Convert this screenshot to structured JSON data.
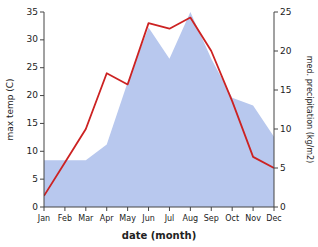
{
  "chart_data": {
    "type": "line",
    "xlabel": "date (month)",
    "ylabel": "max temp (C)",
    "y2label": "med. precipitation (kg/m2)",
    "categories": [
      "Jan",
      "Feb",
      "Mar",
      "Apr",
      "May",
      "Jun",
      "Jul",
      "Aug",
      "Sep",
      "Oct",
      "Nov",
      "Dec"
    ],
    "series": [
      {
        "type": "area",
        "axis": "y2",
        "color": "#b8c8ee",
        "values": [
          6,
          6,
          6,
          8,
          16,
          23,
          19,
          25,
          19,
          14,
          13,
          9
        ]
      },
      {
        "type": "line",
        "color": "#cc2222",
        "values": [
          2,
          8,
          14,
          24,
          22,
          33,
          32,
          34,
          28,
          19,
          9,
          7
        ]
      }
    ],
    "ylim": [
      0,
      35
    ],
    "yticks": [
      0,
      5,
      10,
      15,
      20,
      25,
      30,
      35
    ],
    "y2lim": [
      0,
      25
    ],
    "y2ticks": [
      0,
      5,
      10,
      15,
      20,
      25
    ],
    "grid": false
  }
}
